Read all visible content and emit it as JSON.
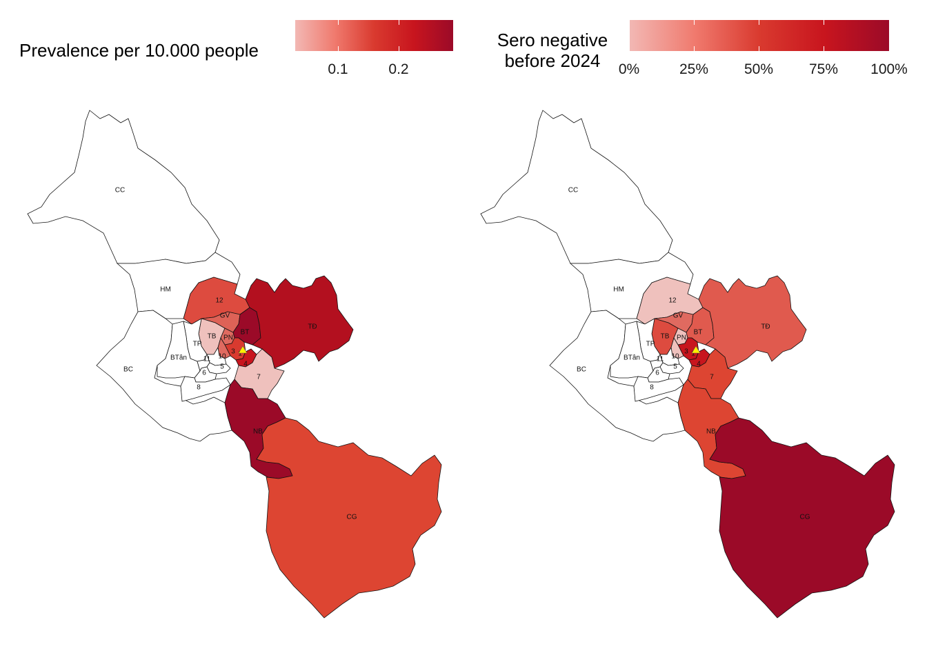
{
  "legends": {
    "left": {
      "title": "Prevalence per 10.000 people",
      "ticks": [
        "0.1",
        "0.2"
      ],
      "colors": [
        "#f2b8b4",
        "#f07a6e",
        "#d93a2f",
        "#c8151e",
        "#9b0a28"
      ]
    },
    "right": {
      "title_line1": "Sero negative",
      "title_line2": "before 2024",
      "ticks": [
        "0%",
        "25%",
        "50%",
        "75%",
        "100%"
      ],
      "colors": [
        "#f2b8b4",
        "#f07a6e",
        "#d93a2f",
        "#c8151e",
        "#9b0a28"
      ]
    }
  },
  "marker": {
    "shape": "triangle",
    "color": "#ffee00"
  },
  "district_labels": {
    "CC": "CC",
    "HM": "HM",
    "BC": "BC",
    "n12": "12",
    "GV": "GV",
    "TB": "TB",
    "TP": "TP",
    "BTan": "BTân",
    "PN": "PN",
    "BT": "BT",
    "TD": "TĐ",
    "n1": "1",
    "n3": "3",
    "n4": "4",
    "n10": "10",
    "n11": "11",
    "n5": "5",
    "n6": "6",
    "n8": "8",
    "n7": "7",
    "NB": "NB",
    "CG": "CG"
  },
  "chart_data": [
    {
      "type": "choropleth",
      "title": "Prevalence per 10.000 people",
      "scale_ticks": [
        0.1,
        0.2
      ],
      "fill_color": {
        "CC": "#ffffff",
        "HM": "#ffffff",
        "BC": "#ffffff",
        "BTân": "#ffffff",
        "TP": "#ffffff",
        "11": "#ffffff",
        "10": "#ffffff",
        "5": "#ffffff",
        "6": "#ffffff",
        "8": "#ffffff",
        "12": "#dd4b3f",
        "GV": "#de6257",
        "TB": "#efc1bd",
        "PN": "#e06a60",
        "BT": "#9b0a28",
        "TĐ": "#b3101f",
        "1": "#d93a2f",
        "3": "#e06a60",
        "4": "#c8151e",
        "7": "#efc1bd",
        "NB": "#9b0a28",
        "CG": "#dd4532"
      }
    },
    {
      "type": "choropleth",
      "title": "Sero negative before 2024",
      "scale_ticks": [
        "0%",
        "25%",
        "50%",
        "75%",
        "100%"
      ],
      "fill_color": {
        "CC": "#ffffff",
        "HM": "#ffffff",
        "BC": "#ffffff",
        "BTân": "#ffffff",
        "TP": "#ffffff",
        "11": "#ffffff",
        "10": "#ffffff",
        "5": "#ffffff",
        "6": "#ffffff",
        "8": "#ffffff",
        "12": "#efc1bd",
        "GV": "#e06a60",
        "TB": "#dd4b3f",
        "PN": "#efc1bd",
        "BT": "#e05a4e",
        "TĐ": "#e05a4e",
        "1": "#c8151e",
        "3": "#efc1bd",
        "4": "#c8151e",
        "7": "#dd4532",
        "NB": "#dd4532",
        "CG": "#9b0a28"
      }
    }
  ]
}
